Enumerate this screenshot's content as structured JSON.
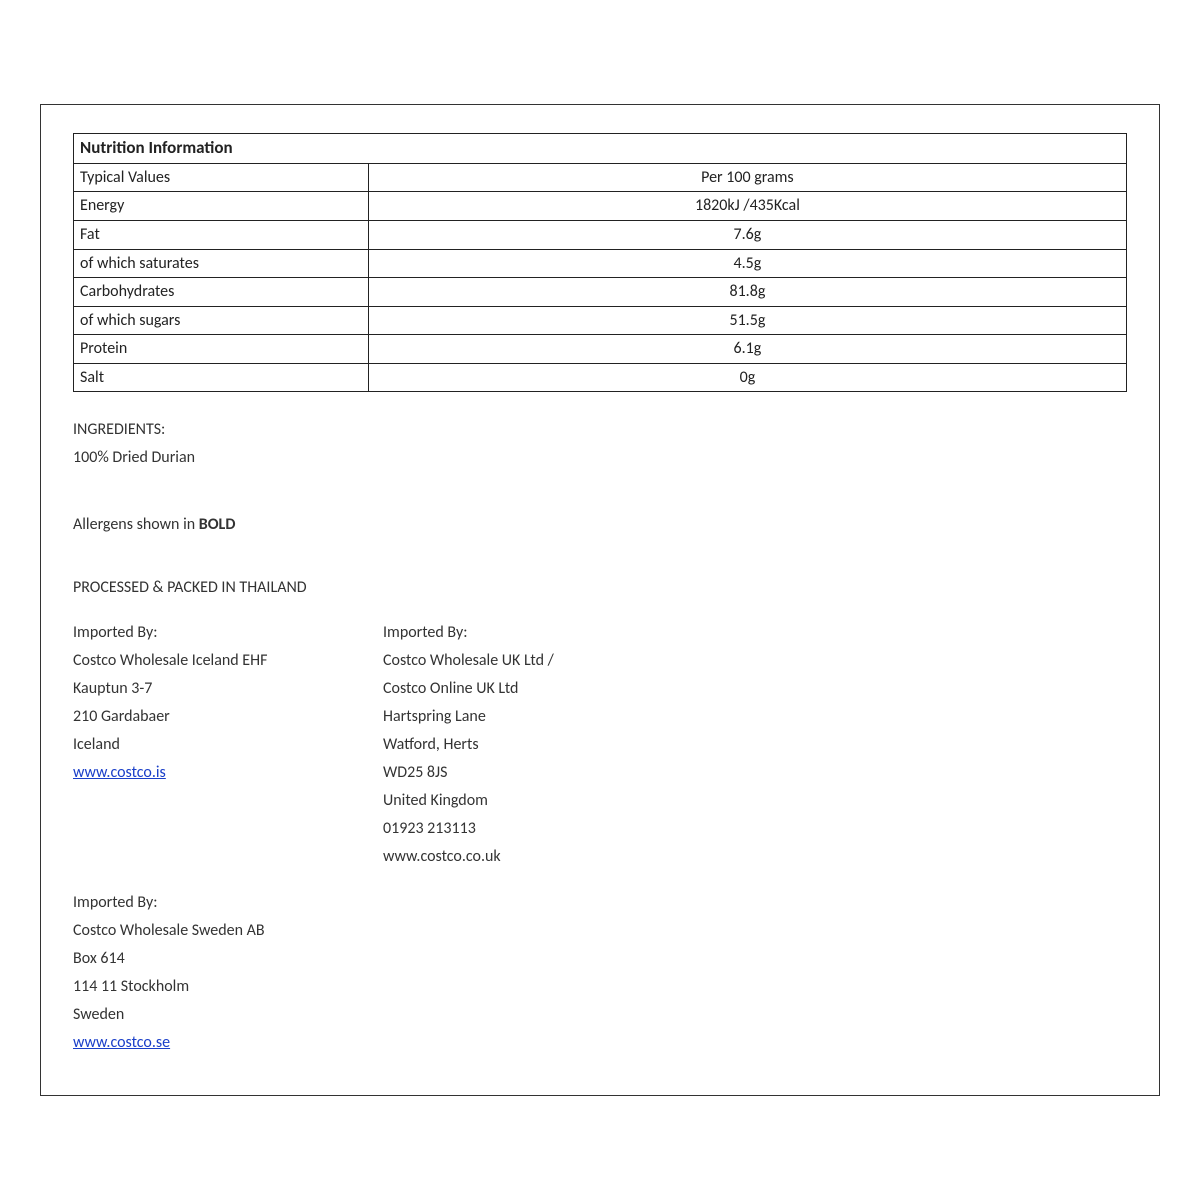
{
  "table": {
    "title": "Nutrition Information",
    "rows": [
      {
        "label": "Typical Values",
        "value": "Per 100 grams"
      },
      {
        "label": "Energy",
        "value": "1820kJ /435Kcal"
      },
      {
        "label": "Fat",
        "value": "7.6g"
      },
      {
        "label": "of which saturates",
        "value": "4.5g"
      },
      {
        "label": "Carbohydrates",
        "value": "81.8g"
      },
      {
        "label": "of which sugars",
        "value": "51.5g"
      },
      {
        "label": "Protein",
        "value": "6.1g"
      },
      {
        "label": "Salt",
        "value": "0g"
      }
    ]
  },
  "ingredients_heading": "INGREDIENTS:",
  "ingredients_body": "100% Dried Durian",
  "allergens_prefix": "Allergens shown in ",
  "allergens_bold": "BOLD",
  "processed": "PROCESSED & PACKED IN  THAILAND",
  "importers": {
    "col1": {
      "heading": "Imported By:",
      "lines": [
        "Costco Wholesale Iceland EHF",
        "Kauptun 3-7",
        "210 Gardabaer",
        "Iceland"
      ],
      "link": "www.costco.is"
    },
    "col2": {
      "heading": "Imported By:",
      "lines": [
        "Costco Wholesale UK Ltd /",
        "Costco Online UK Ltd",
        "Hartspring Lane",
        "Watford, Herts",
        "WD25 8JS",
        "United Kingdom",
        "01923 213113",
        "www.costco.co.uk"
      ]
    },
    "col3": {
      "heading": "Imported By:",
      "lines": [
        "Costco Wholesale Sweden AB",
        "Box 614",
        "114 11 Stockholm",
        "Sweden"
      ],
      "link": "www.costco.se"
    }
  }
}
